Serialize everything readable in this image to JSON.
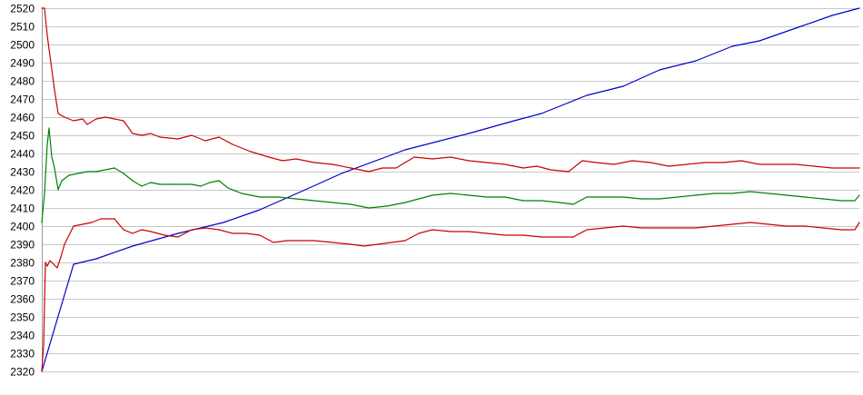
{
  "chart_data": {
    "type": "line",
    "title": "",
    "xlabel": "",
    "ylabel": "",
    "grid": true,
    "ylim": [
      2320,
      2520
    ],
    "xlim": [
      0,
      900
    ],
    "yticks": [
      "2520",
      "2510",
      "2500",
      "2490",
      "2480",
      "2470",
      "2460",
      "2450",
      "2440",
      "2430",
      "2420",
      "2410",
      "2400",
      "2390",
      "2380",
      "2370",
      "2360",
      "2350",
      "2340",
      "2330",
      "2320"
    ],
    "series": [
      {
        "key": "rising",
        "color": "#0000cc",
        "points": [
          [
            0,
            2320
          ],
          [
            35,
            2379
          ],
          [
            60,
            2382
          ],
          [
            100,
            2389
          ],
          [
            150,
            2396
          ],
          [
            200,
            2402
          ],
          [
            240,
            2409
          ],
          [
            290,
            2420
          ],
          [
            330,
            2429
          ],
          [
            400,
            2442
          ],
          [
            470,
            2451
          ],
          [
            520,
            2458
          ],
          [
            550,
            2462
          ],
          [
            580,
            2468
          ],
          [
            600,
            2472
          ],
          [
            640,
            2477
          ],
          [
            680,
            2486
          ],
          [
            720,
            2491
          ],
          [
            760,
            2499
          ],
          [
            790,
            2502
          ],
          [
            830,
            2509
          ],
          [
            870,
            2516
          ],
          [
            900,
            2520
          ]
        ]
      },
      {
        "key": "upper",
        "color": "#cc0000",
        "points": [
          [
            0,
            2520
          ],
          [
            3,
            2520
          ],
          [
            6,
            2505
          ],
          [
            10,
            2490
          ],
          [
            14,
            2475
          ],
          [
            18,
            2462
          ],
          [
            25,
            2460
          ],
          [
            35,
            2458
          ],
          [
            45,
            2459
          ],
          [
            50,
            2456
          ],
          [
            60,
            2459
          ],
          [
            70,
            2460
          ],
          [
            80,
            2459
          ],
          [
            90,
            2458
          ],
          [
            100,
            2451
          ],
          [
            110,
            2450
          ],
          [
            120,
            2451
          ],
          [
            130,
            2449
          ],
          [
            150,
            2448
          ],
          [
            165,
            2450
          ],
          [
            180,
            2447
          ],
          [
            195,
            2449
          ],
          [
            210,
            2445
          ],
          [
            230,
            2441
          ],
          [
            250,
            2438
          ],
          [
            265,
            2436
          ],
          [
            280,
            2437
          ],
          [
            300,
            2435
          ],
          [
            320,
            2434
          ],
          [
            340,
            2432
          ],
          [
            360,
            2430
          ],
          [
            375,
            2432
          ],
          [
            390,
            2432
          ],
          [
            410,
            2438
          ],
          [
            430,
            2437
          ],
          [
            450,
            2438
          ],
          [
            470,
            2436
          ],
          [
            490,
            2435
          ],
          [
            510,
            2434
          ],
          [
            530,
            2432
          ],
          [
            545,
            2433
          ],
          [
            560,
            2431
          ],
          [
            580,
            2430
          ],
          [
            595,
            2436
          ],
          [
            610,
            2435
          ],
          [
            630,
            2434
          ],
          [
            650,
            2436
          ],
          [
            670,
            2435
          ],
          [
            690,
            2433
          ],
          [
            710,
            2434
          ],
          [
            730,
            2435
          ],
          [
            750,
            2435
          ],
          [
            770,
            2436
          ],
          [
            790,
            2434
          ],
          [
            810,
            2434
          ],
          [
            830,
            2434
          ],
          [
            850,
            2433
          ],
          [
            870,
            2432
          ],
          [
            890,
            2432
          ],
          [
            900,
            2432
          ]
        ]
      },
      {
        "key": "middle",
        "color": "#008000",
        "points": [
          [
            0,
            2402
          ],
          [
            3,
            2418
          ],
          [
            6,
            2445
          ],
          [
            8,
            2454
          ],
          [
            11,
            2438
          ],
          [
            14,
            2432
          ],
          [
            18,
            2420
          ],
          [
            22,
            2425
          ],
          [
            30,
            2428
          ],
          [
            40,
            2429
          ],
          [
            50,
            2430
          ],
          [
            60,
            2430
          ],
          [
            70,
            2431
          ],
          [
            80,
            2432
          ],
          [
            90,
            2429
          ],
          [
            100,
            2425
          ],
          [
            110,
            2422
          ],
          [
            120,
            2424
          ],
          [
            130,
            2423
          ],
          [
            145,
            2423
          ],
          [
            165,
            2423
          ],
          [
            175,
            2422
          ],
          [
            185,
            2424
          ],
          [
            195,
            2425
          ],
          [
            205,
            2421
          ],
          [
            220,
            2418
          ],
          [
            240,
            2416
          ],
          [
            260,
            2416
          ],
          [
            280,
            2415
          ],
          [
            300,
            2414
          ],
          [
            320,
            2413
          ],
          [
            340,
            2412
          ],
          [
            360,
            2410
          ],
          [
            380,
            2411
          ],
          [
            400,
            2413
          ],
          [
            415,
            2415
          ],
          [
            430,
            2417
          ],
          [
            450,
            2418
          ],
          [
            470,
            2417
          ],
          [
            490,
            2416
          ],
          [
            510,
            2416
          ],
          [
            530,
            2414
          ],
          [
            550,
            2414
          ],
          [
            570,
            2413
          ],
          [
            585,
            2412
          ],
          [
            600,
            2416
          ],
          [
            620,
            2416
          ],
          [
            640,
            2416
          ],
          [
            660,
            2415
          ],
          [
            680,
            2415
          ],
          [
            700,
            2416
          ],
          [
            720,
            2417
          ],
          [
            740,
            2418
          ],
          [
            760,
            2418
          ],
          [
            780,
            2419
          ],
          [
            800,
            2418
          ],
          [
            820,
            2417
          ],
          [
            840,
            2416
          ],
          [
            860,
            2415
          ],
          [
            880,
            2414
          ],
          [
            895,
            2414
          ],
          [
            900,
            2417
          ]
        ]
      },
      {
        "key": "lower",
        "color": "#cc0000",
        "points": [
          [
            0,
            2320
          ],
          [
            2,
            2335
          ],
          [
            4,
            2380
          ],
          [
            6,
            2378
          ],
          [
            9,
            2381
          ],
          [
            13,
            2379
          ],
          [
            17,
            2377
          ],
          [
            21,
            2383
          ],
          [
            25,
            2390
          ],
          [
            30,
            2395
          ],
          [
            35,
            2400
          ],
          [
            45,
            2401
          ],
          [
            55,
            2402
          ],
          [
            65,
            2404
          ],
          [
            80,
            2404
          ],
          [
            90,
            2398
          ],
          [
            100,
            2396
          ],
          [
            110,
            2398
          ],
          [
            120,
            2397
          ],
          [
            135,
            2395
          ],
          [
            150,
            2394
          ],
          [
            165,
            2398
          ],
          [
            180,
            2399
          ],
          [
            195,
            2398
          ],
          [
            210,
            2396
          ],
          [
            225,
            2396
          ],
          [
            240,
            2395
          ],
          [
            255,
            2391
          ],
          [
            270,
            2392
          ],
          [
            285,
            2392
          ],
          [
            300,
            2392
          ],
          [
            320,
            2391
          ],
          [
            340,
            2390
          ],
          [
            355,
            2389
          ],
          [
            370,
            2390
          ],
          [
            385,
            2391
          ],
          [
            400,
            2392
          ],
          [
            415,
            2396
          ],
          [
            430,
            2398
          ],
          [
            450,
            2397
          ],
          [
            470,
            2397
          ],
          [
            490,
            2396
          ],
          [
            510,
            2395
          ],
          [
            530,
            2395
          ],
          [
            550,
            2394
          ],
          [
            570,
            2394
          ],
          [
            585,
            2394
          ],
          [
            600,
            2398
          ],
          [
            620,
            2399
          ],
          [
            640,
            2400
          ],
          [
            660,
            2399
          ],
          [
            680,
            2399
          ],
          [
            700,
            2399
          ],
          [
            720,
            2399
          ],
          [
            740,
            2400
          ],
          [
            760,
            2401
          ],
          [
            780,
            2402
          ],
          [
            800,
            2401
          ],
          [
            820,
            2400
          ],
          [
            840,
            2400
          ],
          [
            860,
            2399
          ],
          [
            880,
            2398
          ],
          [
            895,
            2398
          ],
          [
            900,
            2402
          ]
        ]
      }
    ]
  }
}
